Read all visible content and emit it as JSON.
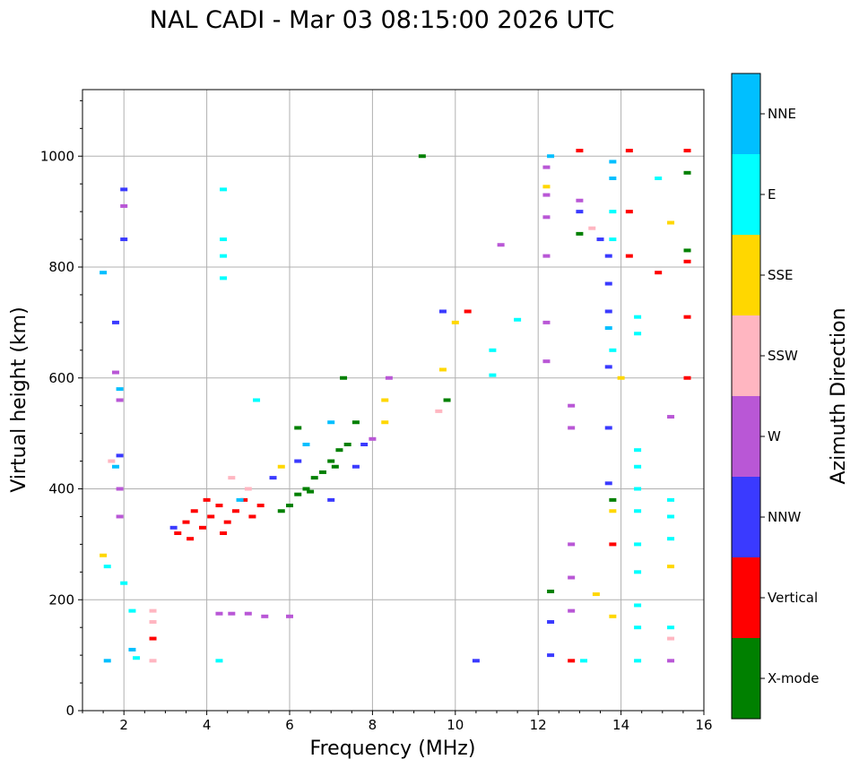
{
  "chart_data": {
    "type": "scatter",
    "title": "NAL CADI - Mar 03 08:15:00 2026 UTC",
    "xlabel": "Frequency (MHz)",
    "ylabel": "Virtual height (km)",
    "xlim": [
      1,
      16
    ],
    "ylim": [
      0,
      1120
    ],
    "xticks": [
      2,
      4,
      6,
      8,
      10,
      12,
      14,
      16
    ],
    "yticks": [
      0,
      200,
      400,
      600,
      800,
      1000
    ],
    "grid": true,
    "colorbar": {
      "label": "Azimuth Direction",
      "categories": [
        {
          "name": "X-mode",
          "color": "#008000"
        },
        {
          "name": "Vertical",
          "color": "#ff0000"
        },
        {
          "name": "NNW",
          "color": "#3a3aff"
        },
        {
          "name": "W",
          "color": "#b957d6"
        },
        {
          "name": "SSW",
          "color": "#ffb6c1"
        },
        {
          "name": "SSE",
          "color": "#ffd700"
        },
        {
          "name": "E",
          "color": "#00ffff"
        },
        {
          "name": "NNE",
          "color": "#00bfff"
        }
      ]
    },
    "series": [
      {
        "name": "X-mode",
        "points": [
          [
            6.0,
            370
          ],
          [
            6.2,
            390
          ],
          [
            6.4,
            400
          ],
          [
            6.6,
            420
          ],
          [
            6.8,
            430
          ],
          [
            7.0,
            450
          ],
          [
            7.2,
            470
          ],
          [
            7.4,
            480
          ],
          [
            5.8,
            360
          ],
          [
            6.5,
            395
          ],
          [
            7.1,
            440
          ],
          [
            7.3,
            600
          ],
          [
            9.8,
            560
          ],
          [
            9.2,
            1000
          ],
          [
            12.3,
            215
          ],
          [
            13.0,
            860
          ],
          [
            15.6,
            830
          ],
          [
            15.6,
            970
          ],
          [
            13.8,
            380
          ],
          [
            6.2,
            510
          ],
          [
            7.6,
            520
          ]
        ]
      },
      {
        "name": "Vertical",
        "points": [
          [
            3.3,
            320
          ],
          [
            3.5,
            340
          ],
          [
            3.7,
            360
          ],
          [
            3.9,
            330
          ],
          [
            4.1,
            350
          ],
          [
            4.3,
            370
          ],
          [
            4.5,
            340
          ],
          [
            4.7,
            360
          ],
          [
            4.9,
            380
          ],
          [
            5.1,
            350
          ],
          [
            3.6,
            310
          ],
          [
            4.0,
            380
          ],
          [
            4.4,
            320
          ],
          [
            5.3,
            370
          ],
          [
            10.3,
            720
          ],
          [
            12.8,
            90
          ],
          [
            13.0,
            1010
          ],
          [
            14.2,
            820
          ],
          [
            14.2,
            1010
          ],
          [
            14.9,
            790
          ],
          [
            15.6,
            810
          ],
          [
            15.6,
            1010
          ],
          [
            15.6,
            600
          ],
          [
            15.6,
            710
          ],
          [
            2.7,
            130
          ],
          [
            13.8,
            300
          ],
          [
            14.2,
            900
          ]
        ]
      },
      {
        "name": "NNW",
        "points": [
          [
            1.8,
            700
          ],
          [
            1.9,
            460
          ],
          [
            2.0,
            940
          ],
          [
            2.0,
            850
          ],
          [
            7.0,
            380
          ],
          [
            7.6,
            440
          ],
          [
            7.8,
            480
          ],
          [
            5.6,
            420
          ],
          [
            6.2,
            450
          ],
          [
            9.7,
            720
          ],
          [
            10.5,
            90
          ],
          [
            12.3,
            100
          ],
          [
            12.3,
            160
          ],
          [
            13.7,
            410
          ],
          [
            13.7,
            510
          ],
          [
            13.7,
            620
          ],
          [
            13.7,
            720
          ],
          [
            13.7,
            770
          ],
          [
            13.7,
            820
          ],
          [
            13.0,
            900
          ],
          [
            13.5,
            850
          ],
          [
            3.2,
            330
          ]
        ]
      },
      {
        "name": "W",
        "points": [
          [
            1.8,
            610
          ],
          [
            1.9,
            400
          ],
          [
            1.9,
            350
          ],
          [
            1.9,
            560
          ],
          [
            2.0,
            910
          ],
          [
            12.2,
            630
          ],
          [
            12.2,
            700
          ],
          [
            12.2,
            820
          ],
          [
            12.2,
            890
          ],
          [
            12.2,
            930
          ],
          [
            12.2,
            980
          ],
          [
            12.8,
            180
          ],
          [
            12.8,
            240
          ],
          [
            12.8,
            300
          ],
          [
            12.8,
            510
          ],
          [
            12.8,
            550
          ],
          [
            15.2,
            90
          ],
          [
            15.2,
            530
          ],
          [
            4.3,
            175
          ],
          [
            4.6,
            175
          ],
          [
            5.0,
            175
          ],
          [
            5.4,
            170
          ],
          [
            6.0,
            170
          ],
          [
            8.4,
            600
          ],
          [
            11.1,
            840
          ],
          [
            13.0,
            920
          ],
          [
            8.0,
            490
          ]
        ]
      },
      {
        "name": "SSW",
        "points": [
          [
            2.7,
            180
          ],
          [
            2.7,
            160
          ],
          [
            1.7,
            450
          ],
          [
            15.2,
            130
          ],
          [
            13.3,
            870
          ],
          [
            9.6,
            540
          ],
          [
            5.0,
            400
          ],
          [
            4.6,
            420
          ],
          [
            2.7,
            90
          ]
        ]
      },
      {
        "name": "SSE",
        "points": [
          [
            1.5,
            280
          ],
          [
            9.7,
            615
          ],
          [
            13.4,
            210
          ],
          [
            13.8,
            170
          ],
          [
            14.0,
            600
          ],
          [
            15.2,
            260
          ],
          [
            15.2,
            880
          ],
          [
            8.3,
            520
          ],
          [
            8.3,
            560
          ],
          [
            5.8,
            440
          ],
          [
            12.2,
            945
          ],
          [
            13.8,
            360
          ],
          [
            10.0,
            700
          ]
        ]
      },
      {
        "name": "E",
        "points": [
          [
            4.4,
            780
          ],
          [
            4.4,
            820
          ],
          [
            4.4,
            850
          ],
          [
            4.4,
            940
          ],
          [
            4.3,
            90
          ],
          [
            14.4,
            90
          ],
          [
            14.4,
            150
          ],
          [
            14.4,
            190
          ],
          [
            14.4,
            250
          ],
          [
            14.4,
            300
          ],
          [
            14.4,
            360
          ],
          [
            14.4,
            400
          ],
          [
            14.4,
            440
          ],
          [
            14.4,
            470
          ],
          [
            14.4,
            680
          ],
          [
            14.4,
            710
          ],
          [
            13.8,
            650
          ],
          [
            13.8,
            850
          ],
          [
            13.8,
            900
          ],
          [
            15.2,
            150
          ],
          [
            15.2,
            310
          ],
          [
            15.2,
            350
          ],
          [
            15.2,
            380
          ],
          [
            10.9,
            650
          ],
          [
            10.9,
            605
          ],
          [
            11.5,
            705
          ],
          [
            2.2,
            180
          ],
          [
            2.3,
            95
          ],
          [
            2.0,
            230
          ],
          [
            13.1,
            90
          ],
          [
            14.9,
            960
          ],
          [
            5.2,
            560
          ],
          [
            1.6,
            260
          ]
        ]
      },
      {
        "name": "NNE",
        "points": [
          [
            1.6,
            90
          ],
          [
            1.8,
            440
          ],
          [
            1.9,
            580
          ],
          [
            13.8,
            990
          ],
          [
            13.8,
            960
          ],
          [
            13.7,
            690
          ],
          [
            12.3,
            1000
          ],
          [
            7.0,
            520
          ],
          [
            6.4,
            480
          ],
          [
            4.8,
            380
          ],
          [
            2.2,
            110
          ],
          [
            1.5,
            790
          ]
        ]
      }
    ]
  }
}
